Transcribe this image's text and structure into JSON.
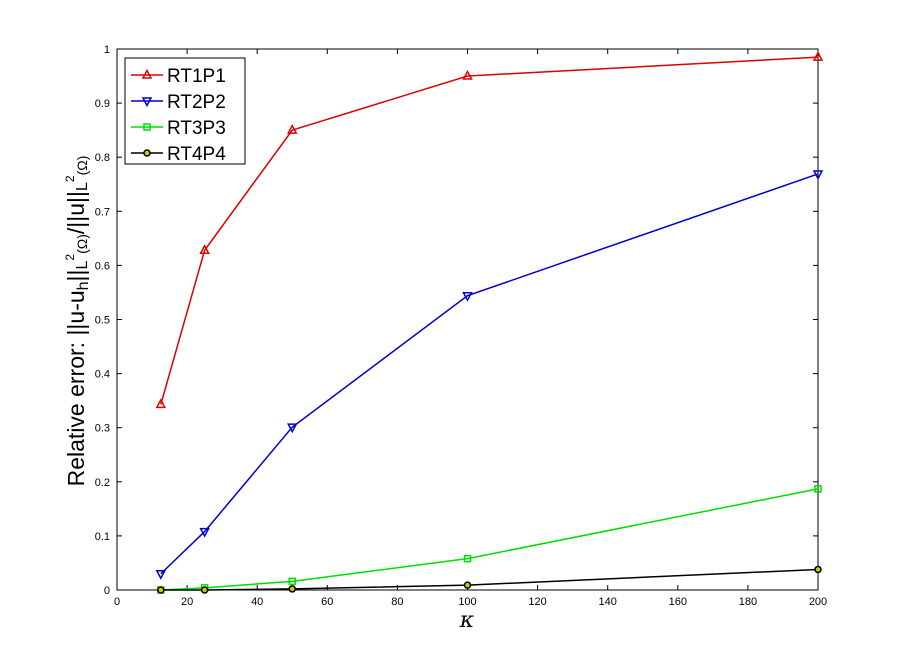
{
  "chart_data": {
    "type": "line",
    "title": "",
    "xlabel": "κ",
    "ylabel": "Relative error: ||u-u_h||_{L^2(Ω)}/||u||_{L^2(Ω)}",
    "xlim": [
      0,
      200
    ],
    "ylim": [
      0,
      1
    ],
    "xticks": [
      "0",
      "20",
      "40",
      "60",
      "80",
      "100",
      "120",
      "140",
      "160",
      "180",
      "200"
    ],
    "yticks": [
      "0",
      "0.1",
      "0.2",
      "0.3",
      "0.4",
      "0.5",
      "0.6",
      "0.7",
      "0.8",
      "0.9",
      "1"
    ],
    "grid": false,
    "legend_position": "top-left",
    "x": [
      12.5,
      25,
      50,
      100,
      200
    ],
    "series": [
      {
        "name": "RT1P1",
        "color": "#dd0000",
        "marker": "triangle-up",
        "values": [
          0.343,
          0.628,
          0.85,
          0.95,
          0.985
        ]
      },
      {
        "name": "RT2P2",
        "color": "#0000cc",
        "marker": "triangle-down",
        "values": [
          0.03,
          0.108,
          0.301,
          0.544,
          0.769
        ]
      },
      {
        "name": "RT3P3",
        "color": "#00dd00",
        "marker": "square",
        "values": [
          0.0,
          0.004,
          0.016,
          0.058,
          0.187
        ]
      },
      {
        "name": "RT4P4",
        "color": "#000000",
        "marker": "circle",
        "values": [
          0.0,
          0.0,
          0.002,
          0.009,
          0.038
        ]
      }
    ]
  }
}
